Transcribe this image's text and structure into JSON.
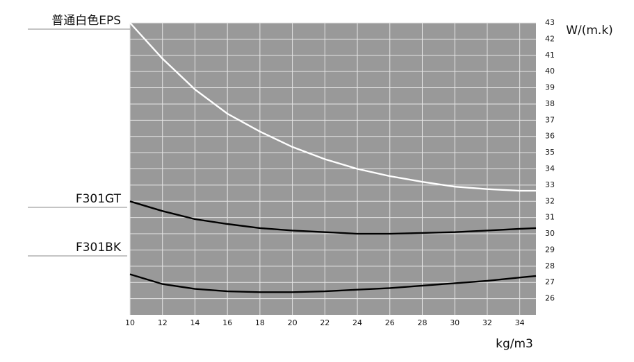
{
  "chart_data": {
    "type": "line",
    "x_label": "kg/m3",
    "y_label": "W/(m.k)",
    "x": [
      10,
      12,
      14,
      16,
      18,
      20,
      22,
      24,
      26,
      28,
      30,
      32,
      34,
      35
    ],
    "series": [
      {
        "name": "普通白色EPS",
        "color": "#ffffff",
        "values": [
          43,
          40.8,
          38.9,
          37.4,
          36.3,
          35.35,
          34.6,
          34.0,
          33.55,
          33.2,
          32.9,
          32.75,
          32.65,
          32.65
        ]
      },
      {
        "name": "F301GT",
        "color": "#000000",
        "values": [
          32.0,
          31.4,
          30.9,
          30.6,
          30.35,
          30.2,
          30.1,
          30.0,
          30.0,
          30.05,
          30.1,
          30.2,
          30.3,
          30.35
        ]
      },
      {
        "name": "F301BK",
        "color": "#000000",
        "values": [
          27.5,
          26.9,
          26.6,
          26.45,
          26.4,
          26.4,
          26.45,
          26.55,
          26.65,
          26.8,
          26.95,
          27.1,
          27.3,
          27.4
        ]
      }
    ],
    "xlim": [
      10,
      35
    ],
    "ylim": [
      25,
      43
    ],
    "xticks": [
      10,
      12,
      14,
      16,
      18,
      20,
      22,
      24,
      26,
      28,
      30,
      32,
      34
    ],
    "yticks": [
      26,
      27,
      28,
      29,
      30,
      31,
      32,
      33,
      34,
      35,
      36,
      37,
      38,
      39,
      40,
      41,
      42,
      43
    ],
    "grid": true,
    "background": "#999999"
  }
}
